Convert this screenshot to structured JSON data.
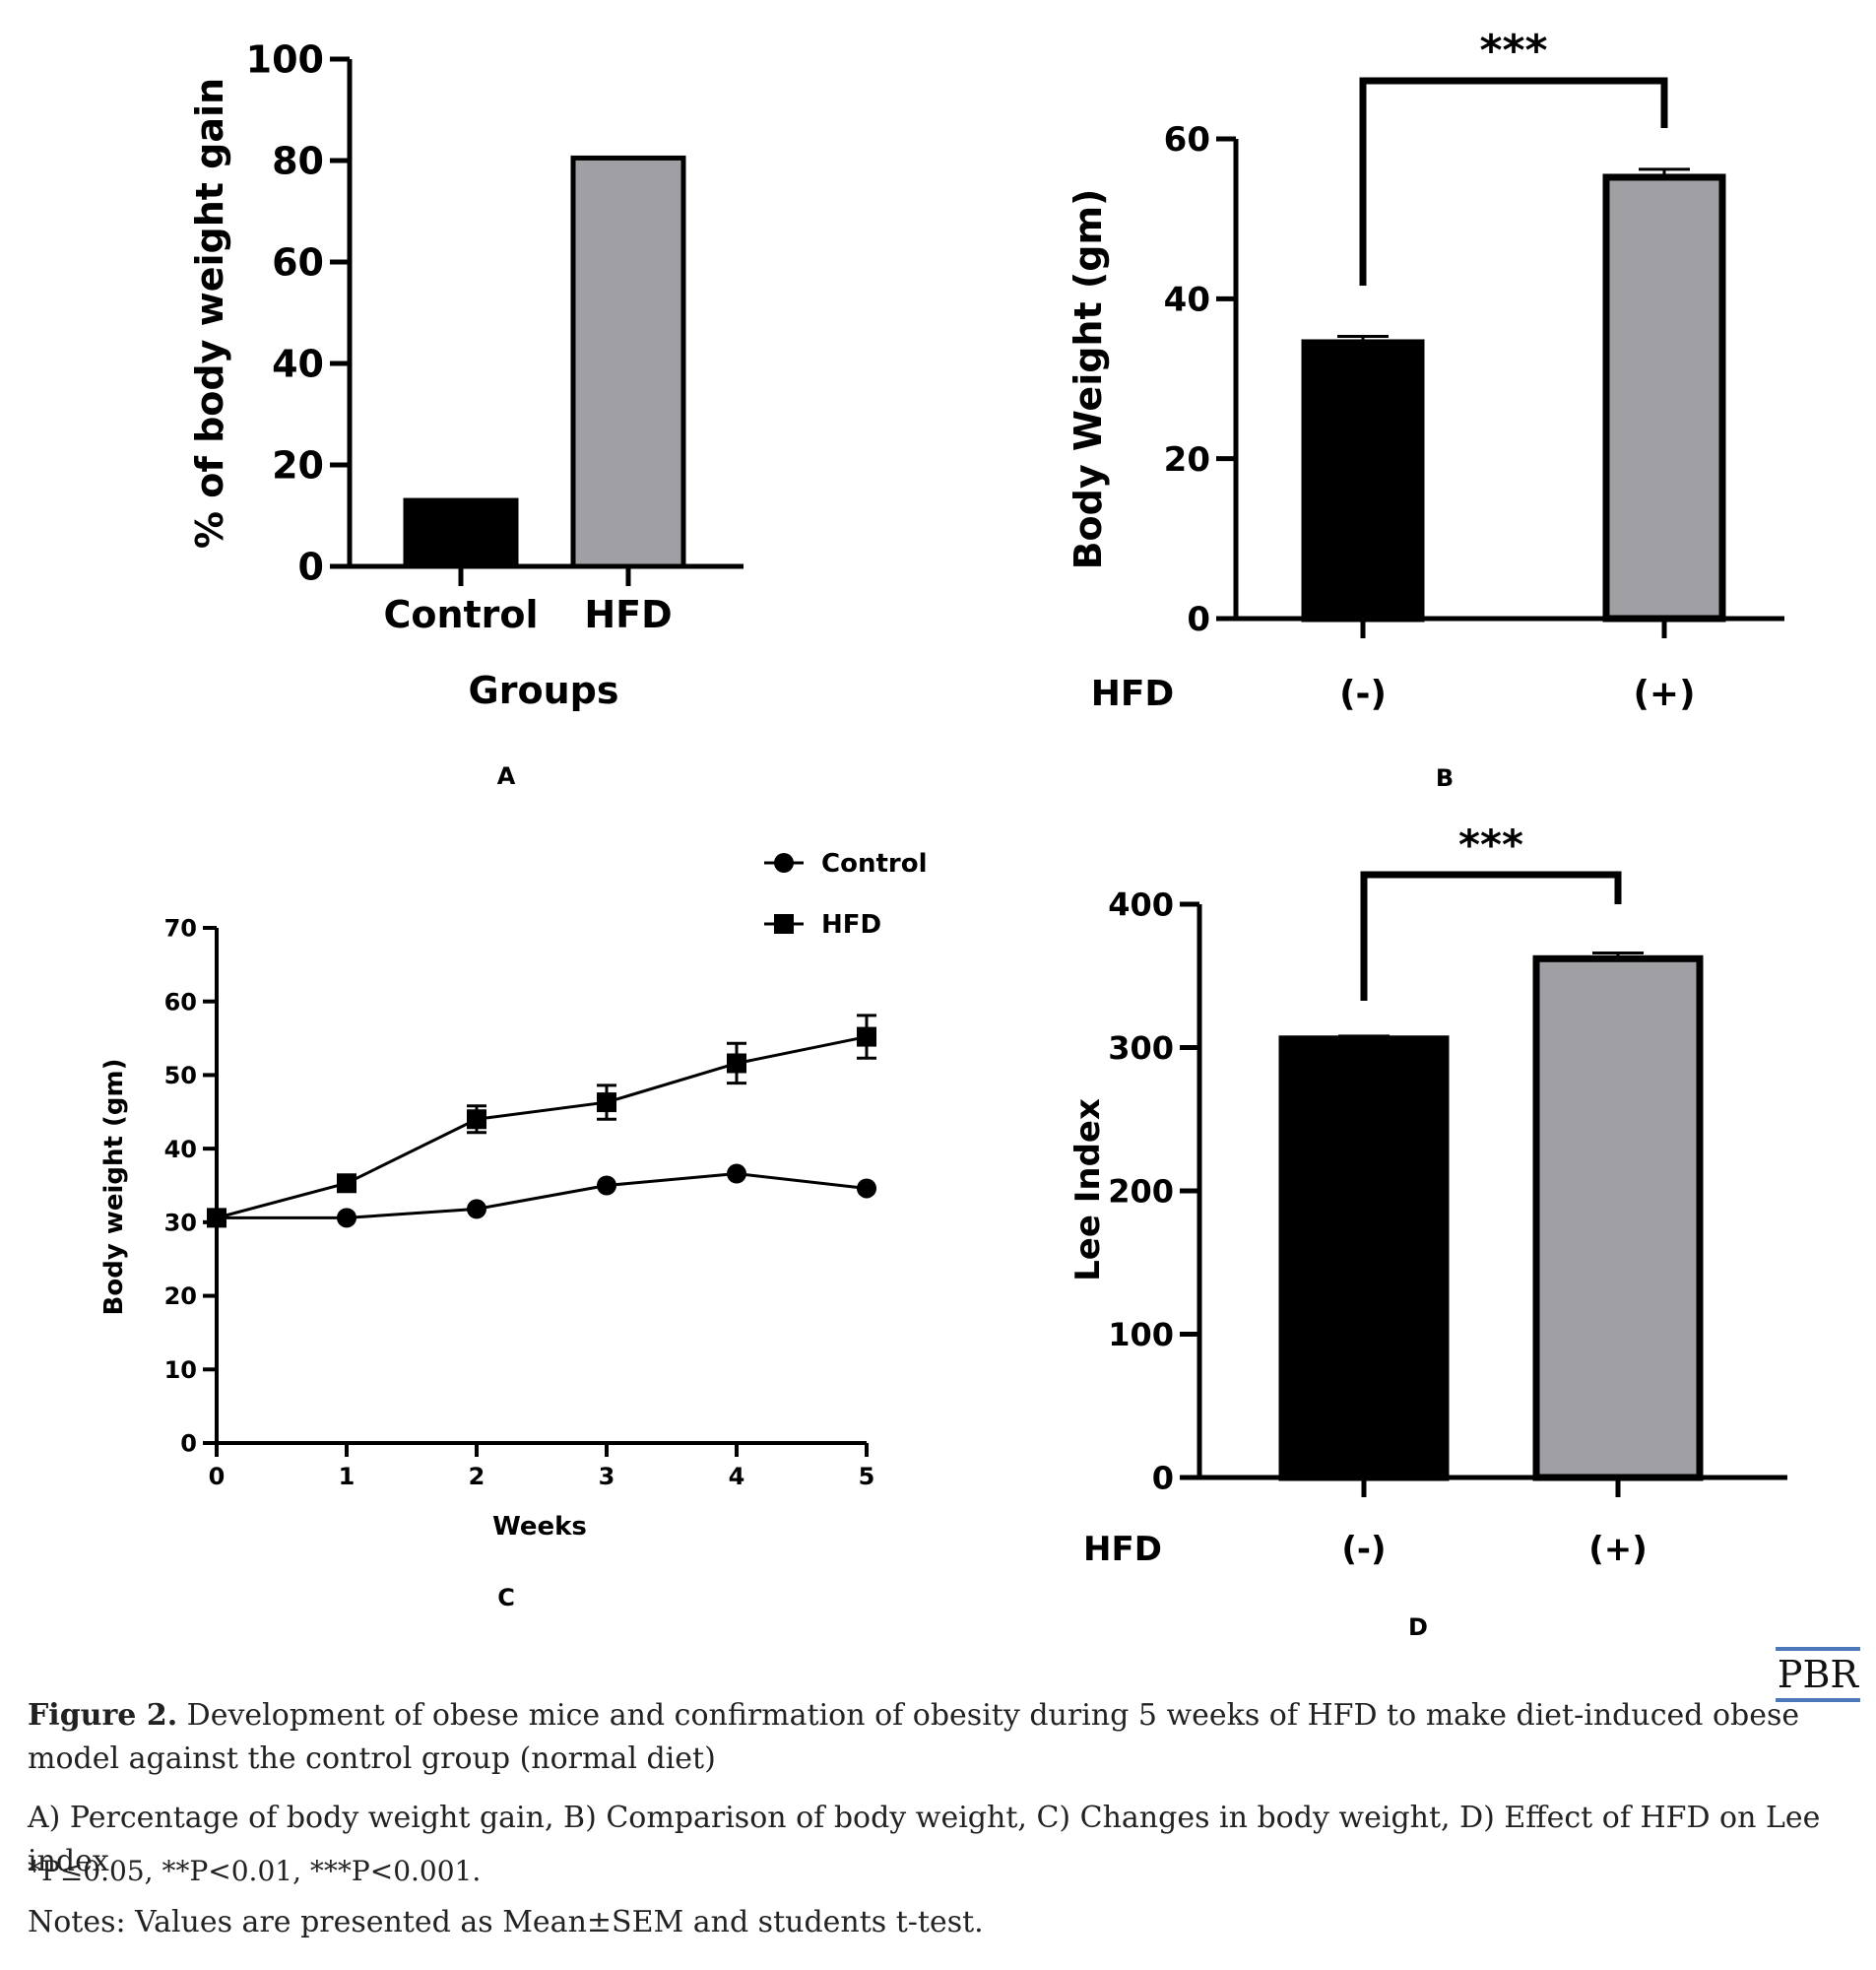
{
  "chart_data": [
    {
      "panel": "A",
      "type": "bar",
      "categories": [
        "Control",
        "HFD"
      ],
      "values": [
        13,
        80.5
      ],
      "colors": [
        "#000000",
        "#a0a0a4"
      ],
      "xlabel": "Groups",
      "ylabel": "% of body weight gain",
      "ylim": [
        0,
        100
      ],
      "yticks": [
        "0",
        "20",
        "40",
        "60",
        "80",
        "100"
      ]
    },
    {
      "panel": "B",
      "type": "bar",
      "group_label": "HFD",
      "categories": [
        "(-)",
        "(+)"
      ],
      "values": [
        34.5,
        55.2
      ],
      "errors": [
        0.8,
        1.0
      ],
      "colors": [
        "#000000",
        "#a0a0a4"
      ],
      "ylabel": "Body Weight (gm)",
      "ylim": [
        0,
        60
      ],
      "yticks": [
        "0",
        "20",
        "40",
        "60"
      ],
      "significance": "***"
    },
    {
      "panel": "C",
      "type": "line",
      "x": [
        0,
        1,
        2,
        3,
        4,
        5
      ],
      "xticks": [
        "0",
        "1",
        "2",
        "3",
        "4",
        "5"
      ],
      "series": [
        {
          "name": "Control",
          "marker": "circle",
          "values": [
            30.6,
            30.6,
            31.8,
            35.0,
            36.6,
            34.6
          ],
          "errors": [
            0.3,
            0.3,
            0.4,
            0.4,
            0.5,
            0.5
          ]
        },
        {
          "name": "HFD",
          "marker": "square",
          "values": [
            30.6,
            35.3,
            44.0,
            46.3,
            51.6,
            55.2
          ],
          "errors": [
            0.3,
            0.6,
            1.8,
            2.3,
            2.7,
            2.9
          ]
        }
      ],
      "xlabel": "Weeks",
      "ylabel": "Body weight (gm)",
      "ylim": [
        0,
        70
      ],
      "yticks": [
        "0",
        "10",
        "20",
        "30",
        "40",
        "50",
        "60",
        "70"
      ],
      "legend": "top-right"
    },
    {
      "panel": "D",
      "type": "bar",
      "group_label": "HFD",
      "categories": [
        "(-)",
        "(+)"
      ],
      "values": [
        306,
        362
      ],
      "errors": [
        2,
        4
      ],
      "colors": [
        "#000000",
        "#a0a0a4"
      ],
      "ylabel": "Lee Index",
      "ylim": [
        0,
        400
      ],
      "yticks": [
        "0",
        "100",
        "200",
        "300",
        "400"
      ],
      "significance": "***"
    }
  ],
  "panel_letters": [
    "A",
    "B",
    "C",
    "D"
  ],
  "logo": "PBR",
  "caption": {
    "fig_label": "Figure 2.",
    "title": " Development of obese mice and confirmation of obesity during 5 weeks of HFD to make diet-induced obese model against the control group (normal diet)",
    "line2": "A) Percentage of body weight gain, B) Comparison of body weight, C) Changes in body weight, D) Effect of HFD on Lee index",
    "line3": "*P≤0.05, **P<0.01, ***P<0.001.",
    "line4": "Notes: Values are presented as Mean±SEM and students t-test."
  }
}
